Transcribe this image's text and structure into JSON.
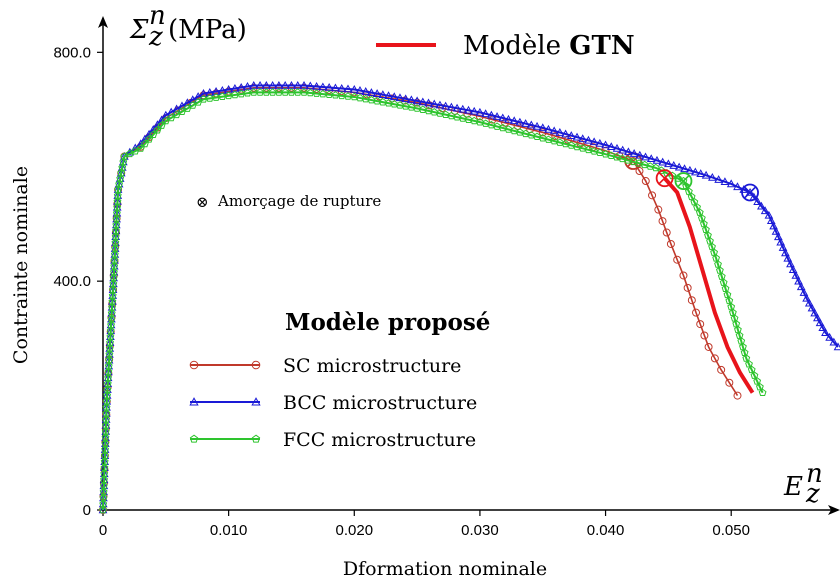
{
  "chart_data": {
    "type": "line",
    "xlabel": "Dformation nominale",
    "ylabel": "Contrainte nominale",
    "x_axis_symbol": "E",
    "x_axis_symbol_sup": "n",
    "x_axis_symbol_sub": "z",
    "y_axis_symbol": "Σ",
    "y_axis_symbol_sup": "n",
    "y_axis_symbol_sub": "z",
    "y_axis_unit": "(MPa)",
    "xlim": [
      0,
      0.0585
    ],
    "ylim": [
      0,
      860
    ],
    "xticks": [
      0,
      0.01,
      0.02,
      0.03,
      0.04,
      0.05
    ],
    "xtick_labels": [
      "0",
      "0.010",
      "0.020",
      "0.030",
      "0.040",
      "0.050"
    ],
    "yticks": [
      0,
      400,
      800
    ],
    "ytick_labels": [
      "0",
      "400.0",
      "800.0"
    ],
    "legend_title": "Modèle proposé",
    "annotation": "Amorçage de rupture",
    "annotation_symbol": "⊗",
    "gtn_legend": {
      "prefix": "Modèle ",
      "bold": "GTN",
      "color": "#e8141b"
    },
    "series": [
      {
        "name": "SC microstructure",
        "color": "#c0392b",
        "marker": "circle",
        "rupture": [
          0.0422,
          610
        ],
        "x": [
          0,
          0.0003,
          0.0008,
          0.0012,
          0.0017,
          0.003,
          0.005,
          0.008,
          0.012,
          0.016,
          0.02,
          0.025,
          0.03,
          0.035,
          0.04,
          0.0422,
          0.0432,
          0.0442,
          0.0452,
          0.0462,
          0.0472,
          0.0482,
          0.0492,
          0.0505
        ],
        "y": [
          0,
          190,
          385,
          560,
          618,
          635,
          685,
          725,
          738,
          738,
          730,
          712,
          688,
          660,
          628,
          610,
          575,
          525,
          465,
          410,
          345,
          285,
          245,
          200
        ]
      },
      {
        "name": "BCC microstructure",
        "color": "#1a1ad6",
        "marker": "triangle",
        "rupture": [
          0.0515,
          555
        ],
        "x": [
          0,
          0.0003,
          0.0008,
          0.0012,
          0.0017,
          0.003,
          0.005,
          0.008,
          0.012,
          0.016,
          0.02,
          0.025,
          0.03,
          0.035,
          0.04,
          0.045,
          0.048,
          0.05,
          0.0515,
          0.053,
          0.0545,
          0.056,
          0.0575,
          0.0585
        ],
        "y": [
          0,
          190,
          385,
          560,
          618,
          640,
          690,
          728,
          742,
          742,
          735,
          715,
          695,
          668,
          638,
          605,
          585,
          570,
          555,
          515,
          440,
          370,
          310,
          285
        ]
      },
      {
        "name": "FCC microstructure",
        "color": "#2ec42e",
        "marker": "pentagon",
        "rupture": [
          0.0462,
          575
        ],
        "x": [
          0,
          0.0003,
          0.0008,
          0.0012,
          0.0017,
          0.003,
          0.005,
          0.008,
          0.012,
          0.016,
          0.02,
          0.025,
          0.03,
          0.035,
          0.04,
          0.044,
          0.0462,
          0.0475,
          0.0488,
          0.05,
          0.0512,
          0.0525
        ],
        "y": [
          0,
          190,
          385,
          560,
          618,
          632,
          680,
          718,
          730,
          730,
          722,
          702,
          678,
          650,
          622,
          598,
          575,
          520,
          440,
          355,
          265,
          205
        ]
      },
      {
        "name": "Modèle GTN",
        "color": "#e8141b",
        "marker": "none",
        "rupture": [
          0.0447,
          580
        ],
        "x": [
          0.0447,
          0.0457,
          0.0467,
          0.0477,
          0.0487,
          0.0497,
          0.0507,
          0.0517
        ],
        "y": [
          580,
          555,
          495,
          420,
          345,
          285,
          240,
          205
        ]
      }
    ]
  }
}
